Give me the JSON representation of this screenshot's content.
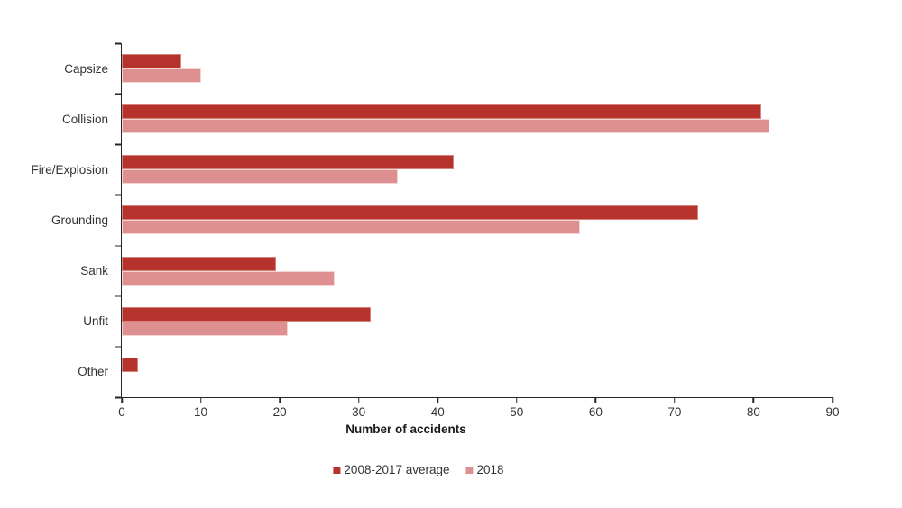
{
  "chart_data": {
    "type": "bar",
    "orientation": "horizontal",
    "categories": [
      "Capsize",
      "Collision",
      "Fire/Explosion",
      "Grounding",
      "Sank",
      "Unfit",
      "Other"
    ],
    "series": [
      {
        "name": "2008-2017 average",
        "color": "#b5332c",
        "border_color": "#d8847e",
        "values": [
          7.5,
          81,
          42,
          73,
          19.5,
          31.5,
          2
        ]
      },
      {
        "name": "2018",
        "color": "#dd908f",
        "border_color": "#f3d6d4",
        "values": [
          10,
          82,
          35,
          58,
          27,
          21,
          0
        ]
      }
    ],
    "xlabel": "Number of accidents",
    "xlim": [
      0,
      90
    ],
    "xticks": [
      0,
      10,
      20,
      30,
      40,
      50,
      60,
      70,
      80,
      90
    ],
    "grid": false,
    "legend_position": "bottom",
    "axis_color": "#262626",
    "text_color": "#333333"
  }
}
